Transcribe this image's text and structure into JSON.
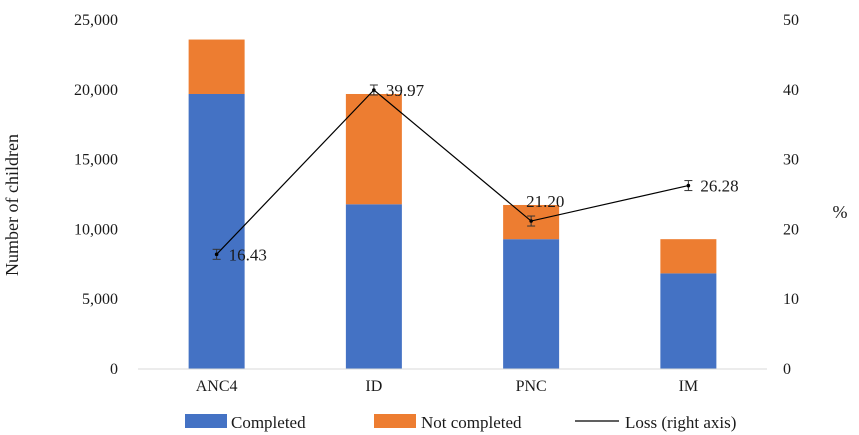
{
  "chart_data": {
    "type": "bar",
    "stacked": true,
    "categories": [
      "ANC4",
      "ID",
      "PNC",
      "IM"
    ],
    "series": [
      {
        "name": "Completed",
        "color": "#4472C4",
        "values": [
          19700,
          11800,
          9300,
          6850
        ]
      },
      {
        "name": "Not completed",
        "color": "#ED7D31",
        "values": [
          3900,
          7900,
          2450,
          2450
        ]
      }
    ],
    "line_series": {
      "name": "Loss (right axis)",
      "color": "#000000",
      "axis": "right",
      "values": [
        16.43,
        39.97,
        21.2,
        26.28
      ],
      "labels": [
        "16.43",
        "39.97",
        "21.20",
        "26.28"
      ],
      "error_bars": true
    },
    "ylabel": "Number of children",
    "y2label": "%",
    "ylim": [
      0,
      25000
    ],
    "y2lim": [
      0,
      50
    ],
    "yticks": [
      "0",
      "5,000",
      "10,000",
      "15,000",
      "20,000",
      "25,000"
    ],
    "y2ticks": [
      "0",
      "10",
      "20",
      "30",
      "40",
      "50"
    ],
    "grid": false,
    "legend_position": "bottom"
  }
}
